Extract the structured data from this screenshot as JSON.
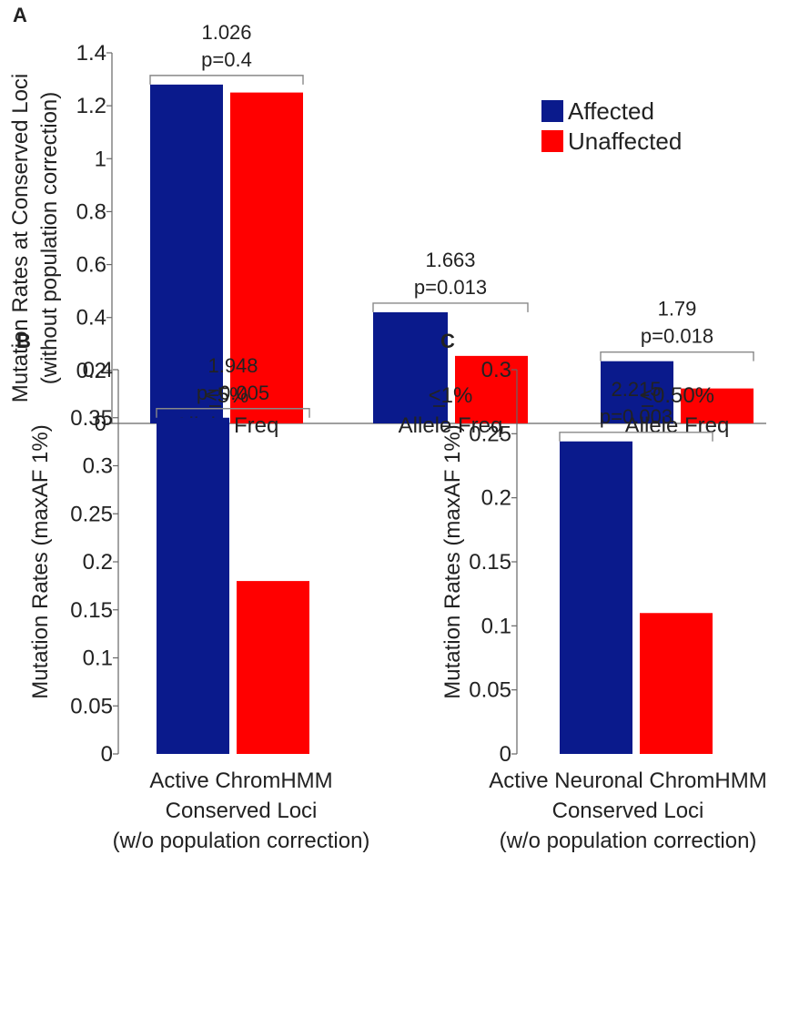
{
  "colors": {
    "affected": "#0a1a8c",
    "unaffected": "#ff0000"
  },
  "chart_data": [
    {
      "id": "A",
      "type": "bar",
      "panel_label": "A",
      "ylabel": "Mutation Rates at Conserved Loci (without population correction)",
      "ylabel_lines": [
        "Mutation Rates at Conserved Loci",
        "(without population correction)"
      ],
      "ylim": [
        0,
        1.4
      ],
      "yticks": [
        "0",
        "0.2",
        "0.4",
        "0.6",
        "0.8",
        "1",
        "1.2",
        "1.4"
      ],
      "ytick_values": [
        0,
        0.2,
        0.4,
        0.6,
        0.8,
        1.0,
        1.2,
        1.4
      ],
      "categories": [
        "<5% Allele Freq",
        "<1% Allele Freq",
        "<0.50% Allele Freq"
      ],
      "category_lines": [
        [
          "<5%",
          "Allele Freq"
        ],
        [
          "<1%",
          "Allele Freq"
        ],
        [
          "<0.50%",
          "Allele Freq"
        ]
      ],
      "category_label_underline": true,
      "legend": {
        "position": "top-right",
        "entries": [
          "Affected",
          "Unaffected"
        ]
      },
      "series": [
        {
          "name": "Affected",
          "values": [
            1.28,
            0.42,
            0.235
          ]
        },
        {
          "name": "Unaffected",
          "values": [
            1.25,
            0.255,
            0.132
          ]
        }
      ],
      "annotations": [
        {
          "ratio": "1.026",
          "p": "p=0.4"
        },
        {
          "ratio": "1.663",
          "p": "p=0.013"
        },
        {
          "ratio": "1.79",
          "p": "p=0.018"
        }
      ]
    },
    {
      "id": "B",
      "type": "bar",
      "panel_label": "B",
      "ylabel": "Mutation Rates (maxAF 1%)",
      "ylim": [
        0,
        0.4
      ],
      "yticks": [
        "0",
        "0.05",
        "0.1",
        "0.15",
        "0.2",
        "0.25",
        "0.3",
        "0.35",
        "0.4"
      ],
      "ytick_values": [
        0,
        0.05,
        0.1,
        0.15,
        0.2,
        0.25,
        0.3,
        0.35,
        0.4
      ],
      "categories": [
        "Active ChromHMM Conserved Loci (w/o population correction)"
      ],
      "category_lines": [
        [
          "Active ChromHMM",
          "Conserved Loci",
          "(w/o population correction)"
        ]
      ],
      "series": [
        {
          "name": "Affected",
          "values": [
            0.35
          ]
        },
        {
          "name": "Unaffected",
          "values": [
            0.18
          ]
        }
      ],
      "annotations": [
        {
          "ratio": "1.948",
          "p": "p=0.005"
        }
      ]
    },
    {
      "id": "C",
      "type": "bar",
      "panel_label": "C",
      "ylabel": "Mutation Rates (maxAF 1%)",
      "ylim": [
        0,
        0.3
      ],
      "yticks": [
        "0",
        "0.05",
        "0.1",
        "0.15",
        "0.2",
        "0.25",
        "0.3"
      ],
      "ytick_values": [
        0,
        0.05,
        0.1,
        0.15,
        0.2,
        0.25,
        0.3
      ],
      "categories": [
        "Active Neuronal ChromHMM Conserved Loci (w/o population correction)"
      ],
      "category_lines": [
        [
          "Active Neuronal ChromHMM",
          "Conserved Loci",
          "(w/o population correction)"
        ]
      ],
      "series": [
        {
          "name": "Affected",
          "values": [
            0.244
          ]
        },
        {
          "name": "Unaffected",
          "values": [
            0.11
          ]
        }
      ],
      "annotations": [
        {
          "ratio": "2.215",
          "p": "p=0.003"
        }
      ]
    }
  ]
}
